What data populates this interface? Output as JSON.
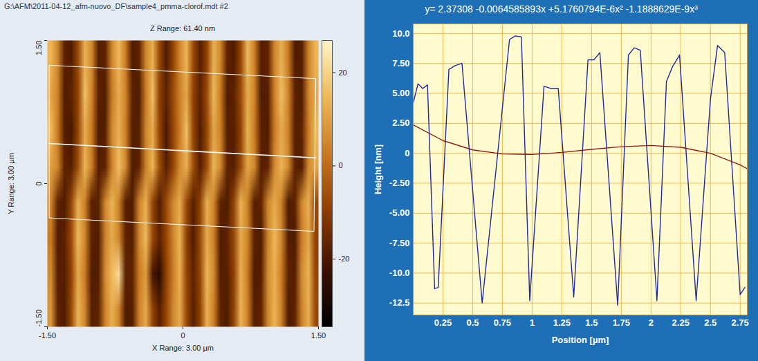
{
  "chart_data": [
    {
      "type": "heatmap",
      "title": "G:\\AFM\\2011-04-12_afm-nuovo_DF\\sample4_pmma-clorof.mdt #2",
      "subtitle": "Z Range: 61.40 nm",
      "x_label": "X Range: 3.00 µm",
      "y_label": "Y Range: 3.00 µm",
      "xlim": [
        -1.5,
        1.5
      ],
      "ylim": [
        -1.5,
        1.5
      ],
      "xticks": [
        {
          "value": -1.5,
          "label": "-1.50"
        },
        0,
        {
          "value": 1.5,
          "label": "1.50"
        }
      ],
      "yticks": [
        {
          "value": -1.5,
          "label": "-1.50"
        },
        0,
        {
          "value": 1.5,
          "label": "1.50"
        }
      ],
      "cells": [
        [
          14,
          5,
          -17,
          -19,
          -7,
          13,
          6,
          -18,
          -17,
          5,
          15,
          3,
          -19,
          -17,
          5,
          13,
          -7,
          -19,
          -9,
          5,
          14,
          -7,
          -18,
          -9,
          13,
          5,
          -17,
          -19,
          -8,
          15,
          4,
          -18,
          -17,
          5,
          13,
          3,
          -19,
          -18,
          4,
          14
        ],
        [
          11,
          4,
          -19,
          -17,
          -9,
          16,
          5,
          -17,
          -19,
          3,
          12,
          5,
          -17,
          -19,
          3,
          16,
          -9,
          -17,
          -7,
          4,
          11,
          -9,
          -17,
          -7,
          15,
          3,
          -19,
          -17,
          -7,
          12,
          5,
          -19,
          -18,
          4,
          16,
          5,
          -17,
          -19,
          5,
          12
        ],
        [
          15,
          3,
          -18,
          -20,
          -8,
          12,
          3,
          -19,
          -18,
          6,
          13,
          4,
          -18,
          -18,
          5,
          12,
          -8,
          -20,
          -8,
          3,
          16,
          -8,
          -19,
          -8,
          11,
          4,
          -18,
          -18,
          -9,
          14,
          3,
          -17,
          -19,
          3,
          12,
          4,
          -18,
          -17,
          3,
          15
        ],
        [
          10,
          5,
          -17,
          -18,
          -6,
          14,
          4,
          -18,
          -17,
          4,
          16,
          6,
          -19,
          -17,
          4,
          14,
          -6,
          -18,
          -9,
          6,
          13,
          -6,
          -18,
          -7,
          14,
          6,
          -17,
          -18,
          -7,
          11,
          6,
          -18,
          -17,
          6,
          14,
          6,
          -17,
          -19,
          6,
          11
        ],
        [
          5,
          -17,
          -19,
          -8,
          13,
          4,
          -18,
          -17,
          5,
          14,
          4,
          -18,
          -19,
          4,
          13,
          -8,
          -19,
          -7,
          5,
          12,
          -7,
          -18,
          -9,
          13,
          5,
          -17,
          -19,
          -8,
          14,
          4,
          -18,
          -17,
          5,
          12,
          4,
          -19,
          -17,
          5,
          13,
          -7
        ],
        [
          3,
          -19,
          -17,
          -7,
          15,
          5,
          -17,
          -19,
          4,
          12,
          5,
          -17,
          -18,
          5,
          15,
          -7,
          -17,
          -8,
          4,
          14,
          -9,
          -19,
          -7,
          12,
          4,
          -19,
          -17,
          -7,
          12,
          5,
          -17,
          -19,
          4,
          15,
          5,
          -18,
          -19,
          3,
          12,
          -9
        ],
        [
          6,
          -18,
          -18,
          -9,
          12,
          3,
          -19,
          -18,
          6,
          15,
          22,
          -17,
          -17,
          3,
          9,
          -20,
          -26,
          -9,
          3,
          13,
          -8,
          -17,
          -8,
          14,
          6,
          -18,
          -18,
          -9,
          13,
          3,
          -19,
          -18,
          6,
          13,
          3,
          -17,
          -18,
          6,
          14,
          -8
        ],
        [
          8,
          -17,
          -19,
          -7,
          14,
          5,
          -18,
          -17,
          4,
          13,
          5,
          -19,
          -18,
          4,
          12,
          -8,
          -18,
          -8,
          5,
          12,
          -7,
          -18,
          -9,
          13,
          4,
          -17,
          -19,
          -8,
          14,
          4,
          -18,
          -17,
          5,
          14,
          4,
          -19,
          -17,
          4,
          13,
          -7
        ]
      ],
      "colorbar_lim": [
        -34.5,
        26.9
      ],
      "colorbar_ticks": [
        -20,
        0,
        20
      ],
      "colors": [
        "#000000",
        "#3c1000",
        "#8c3c00",
        "#c87820",
        "#eeb858",
        "#fff4c8"
      ],
      "profile_region": {
        "x": [
          -1.48,
          1.47,
          1.45,
          -1.48
        ],
        "y": [
          1.24,
          1.1,
          -0.5,
          -0.36
        ]
      },
      "profile_line": {
        "x": [
          -1.48,
          1.47
        ],
        "y": [
          0.42,
          0.27
        ]
      }
    },
    {
      "type": "line",
      "title": "y= 2.37308 -0.0064585893x +5.1760794E-6x² -1.1888629E-9x³",
      "x_label": "Position [µm]",
      "y_label": "Height [nm]",
      "xlim": [
        0,
        2.81
      ],
      "ylim": [
        -13.5,
        10.8
      ],
      "xticks": [
        0.25,
        0.5,
        0.75,
        1,
        1.25,
        1.5,
        1.75,
        2,
        2.25,
        2.5,
        2.75
      ],
      "yticks": [
        {
          "value": 10,
          "label": "10.0"
        },
        {
          "value": 7.5,
          "label": "7.50"
        },
        {
          "value": 5,
          "label": "5.00"
        },
        {
          "value": 2.5,
          "label": "2.50"
        },
        0,
        {
          "value": -2.5,
          "label": "-2.50"
        },
        {
          "value": -5,
          "label": "-5.00"
        },
        {
          "value": -7.5,
          "label": "-7.50"
        },
        {
          "value": -10,
          "label": "-10.0"
        },
        {
          "value": -12.5,
          "label": "-12.5"
        }
      ],
      "grid": true,
      "series": [
        {
          "color": "#1f2a9c",
          "x": [
            0.0,
            0.04,
            0.08,
            0.12,
            0.18,
            0.21,
            0.3,
            0.35,
            0.41,
            0.58,
            0.81,
            0.86,
            0.91,
            0.98,
            1.1,
            1.16,
            1.22,
            1.35,
            1.47,
            1.52,
            1.57,
            1.72,
            1.81,
            1.86,
            1.91,
            2.05,
            2.13,
            2.18,
            2.24,
            2.38,
            2.5,
            2.56,
            2.62,
            2.75,
            2.79
          ],
          "values": [
            4.2,
            5.8,
            5.4,
            5.7,
            -11.3,
            -11.2,
            7.0,
            7.3,
            7.5,
            -12.5,
            9.5,
            9.8,
            9.7,
            -12.3,
            5.6,
            5.4,
            5.4,
            -12.0,
            7.8,
            7.8,
            8.4,
            -12.7,
            8.2,
            8.8,
            8.6,
            -12.3,
            6.0,
            7.2,
            8.2,
            -12.3,
            4.5,
            9.0,
            8.4,
            -11.8,
            -11.2
          ]
        },
        {
          "color": "#8b1c1c",
          "x": [
            0,
            0.25,
            0.5,
            0.75,
            1,
            1.25,
            1.5,
            1.75,
            2,
            2.25,
            2.5,
            2.75,
            2.81
          ],
          "values": [
            2.37,
            1.06,
            0.28,
            -0.06,
            -0.1,
            0.07,
            0.32,
            0.55,
            0.65,
            0.5,
            0.0,
            -0.97,
            -1.29
          ]
        }
      ]
    }
  ]
}
